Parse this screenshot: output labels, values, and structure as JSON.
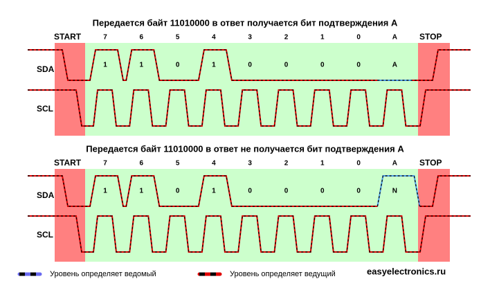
{
  "panels": [
    {
      "title": "Передается байт 11010000 в ответ получается бит подтверждения А",
      "start": "START",
      "stop": "STOP",
      "bits": [
        "7",
        "6",
        "5",
        "4",
        "3",
        "2",
        "1",
        "0",
        "A"
      ],
      "sda": "SDA",
      "scl": "SCL",
      "sda_values": [
        "1",
        "1",
        "0",
        "1",
        "0",
        "0",
        "0",
        "0",
        "A"
      ]
    },
    {
      "title": "Передается байт 11010000 в ответ не получается бит подтверждения А",
      "start": "START",
      "stop": "STOP",
      "bits": [
        "7",
        "6",
        "5",
        "4",
        "3",
        "2",
        "1",
        "0",
        "A"
      ],
      "sda": "SDA",
      "scl": "SCL",
      "sda_values": [
        "1",
        "1",
        "0",
        "1",
        "0",
        "0",
        "0",
        "0",
        "N"
      ]
    }
  ],
  "legend": [
    {
      "label": "Уровень определяет ведомый"
    },
    {
      "label": "Уровень определяет ведущий"
    }
  ],
  "site": "easyelectronics.ru"
}
